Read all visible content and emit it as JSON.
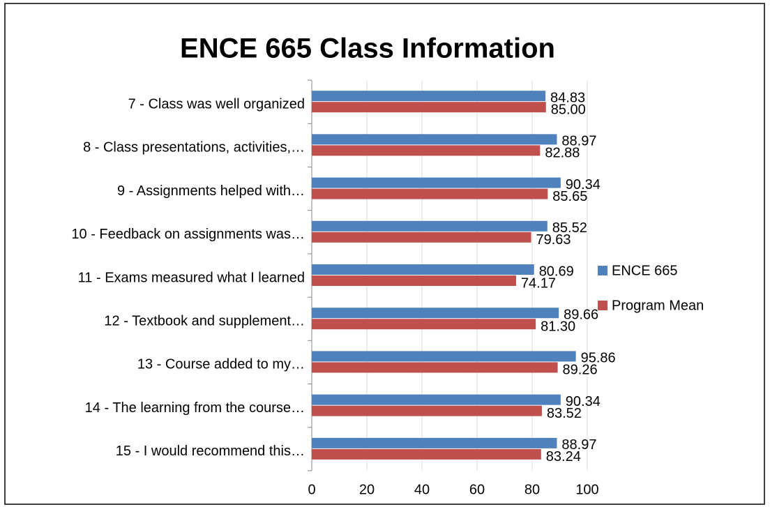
{
  "chart_data": {
    "type": "hbar",
    "title": "ENCE 665 Class Information",
    "categories": [
      "7 - Class was well organized",
      "8 - Class presentations, activities,…",
      "9 - Assignments helped with…",
      "10 - Feedback on assignments was…",
      "11 - Exams measured what I learned",
      "12 - Textbook and supplement…",
      "13 - Course added to my…",
      "14 - The learning from the course…",
      "15 - I would recommend this…"
    ],
    "series": [
      {
        "name": "ENCE 665",
        "color": "#4f81bd",
        "values": [
          84.83,
          88.97,
          90.34,
          85.52,
          80.69,
          89.66,
          95.86,
          90.34,
          88.97
        ],
        "value_labels": [
          "84.83",
          "88.97",
          "90.34",
          "85.52",
          "80.69",
          "89.66",
          "95.86",
          "90.34",
          "88.97"
        ]
      },
      {
        "name": "Program Mean",
        "color": "#c0504d",
        "values": [
          85,
          82.88,
          85.65,
          79.63,
          74.17,
          81.3,
          89.26,
          83.52,
          83.24
        ],
        "value_labels": [
          "85.00",
          "82.88",
          "85.65",
          "79.63",
          "74.17",
          "81.30",
          "89.26",
          "83.52",
          "83.24"
        ]
      }
    ],
    "xlim": [
      0,
      100
    ],
    "xticks": [
      0,
      20,
      40,
      60,
      80,
      100
    ],
    "grid": true,
    "legend": "right"
  }
}
